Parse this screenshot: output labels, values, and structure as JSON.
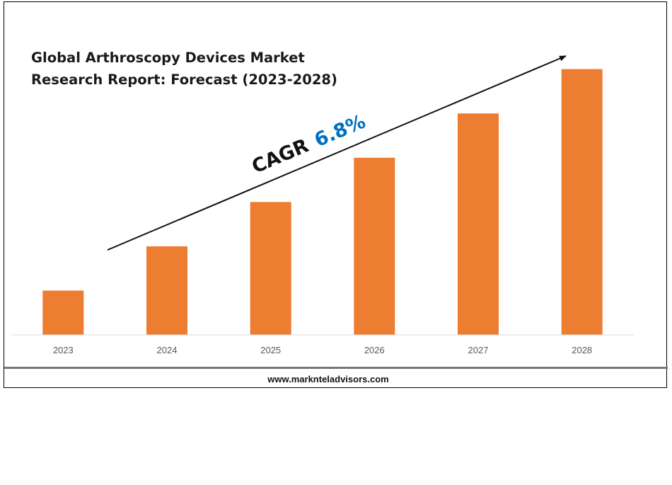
{
  "chart_data": {
    "type": "bar",
    "title_lines": [
      "Global Arthroscopy Devices Market",
      "Research Report: Forecast (2023-2028)"
    ],
    "categories": [
      "2023",
      "2024",
      "2025",
      "2026",
      "2027",
      "2028"
    ],
    "values": [
      1.0,
      2.0,
      3.0,
      4.0,
      5.0,
      6.0
    ],
    "ylim": [
      0,
      6.25
    ],
    "bar_color": "#ED7D31",
    "grid": false,
    "annotations": {
      "cagr_label": "CAGR",
      "cagr_value": "6.8%",
      "cagr_value_color": "#0070C0"
    }
  },
  "footer": {
    "url": "www.marknteladvisors.com"
  }
}
